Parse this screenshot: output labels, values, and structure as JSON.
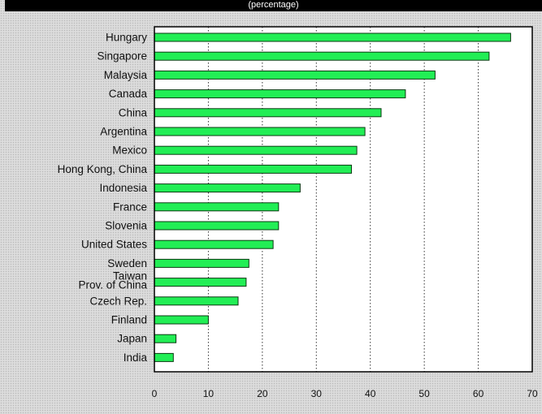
{
  "header": {
    "title": "(percentage)"
  },
  "chart_data": {
    "type": "bar",
    "orientation": "horizontal",
    "categories": [
      "Hungary",
      "Singapore",
      "Malaysia",
      "Canada",
      "China",
      "Argentina",
      "Mexico",
      "Hong Kong, China",
      "Indonesia",
      "France",
      "Slovenia",
      "United States",
      "Sweden",
      "Taiwan Prov. of China",
      "Czech Rep.",
      "Finland",
      "Japan",
      "India"
    ],
    "category_lines": [
      [
        "Hungary"
      ],
      [
        "Singapore"
      ],
      [
        "Malaysia"
      ],
      [
        "Canada"
      ],
      [
        "China"
      ],
      [
        "Argentina"
      ],
      [
        "Mexico"
      ],
      [
        "Hong Kong, China"
      ],
      [
        "Indonesia"
      ],
      [
        "France"
      ],
      [
        "Slovenia"
      ],
      [
        "United States"
      ],
      [
        "Sweden"
      ],
      [
        "Taiwan",
        "Prov. of China"
      ],
      [
        "Czech Rep."
      ],
      [
        "Finland"
      ],
      [
        "Japan"
      ],
      [
        "India"
      ]
    ],
    "values": [
      66,
      62,
      52,
      46.5,
      42,
      39,
      37.5,
      36.5,
      27,
      23,
      23,
      22,
      17.5,
      17,
      15.5,
      10,
      4,
      3.5
    ],
    "xlim": [
      0,
      70
    ],
    "xticks": [
      0,
      10,
      20,
      30,
      40,
      50,
      60,
      70
    ],
    "grid": true,
    "colors": {
      "bar": "#22ee55",
      "bar_edge": "#0a3a12",
      "axis": "#000000",
      "grid": "#333333"
    }
  }
}
